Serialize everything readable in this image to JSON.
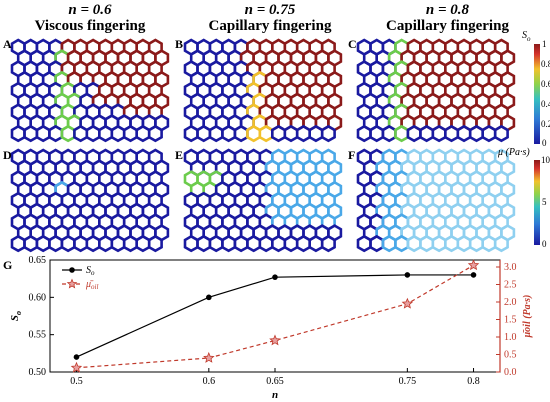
{
  "columns": [
    {
      "n_label": "n = 0.6",
      "title": "Viscous fingering"
    },
    {
      "n_label": "n = 0.75",
      "title": "Capillary fingering"
    },
    {
      "n_label": "n = 0.8",
      "title": "Capillary fingering"
    }
  ],
  "panel_letters": [
    "A",
    "B",
    "C",
    "D",
    "E",
    "F",
    "G"
  ],
  "colorbar_so": {
    "label": "S",
    "sub": "o",
    "ticks": [
      "1",
      "0.8",
      "0.6",
      "0.4",
      "0.2",
      "0"
    ]
  },
  "colorbar_mu": {
    "label": "μ (Pa·s)",
    "ticks": [
      "10",
      "5",
      "0"
    ]
  },
  "colors": {
    "low": "#1a1aa0",
    "high": "#8b1a1a",
    "accent_red": "#c0392b",
    "line_black": "#000000"
  },
  "chart_data": {
    "type": "line",
    "x": [
      0.5,
      0.6,
      0.65,
      0.75,
      0.8
    ],
    "xticks": [
      "0.5",
      "0.6",
      "0.65",
      "0.75",
      "0.8"
    ],
    "xlabel": "n",
    "series": [
      {
        "name": "So",
        "axis": "left",
        "values": [
          0.52,
          0.6,
          0.627,
          0.63,
          0.63
        ]
      },
      {
        "name": "μ̄oil",
        "axis": "right",
        "values": [
          0.12,
          0.4,
          0.9,
          1.95,
          3.05
        ]
      }
    ],
    "ylabel_left": "So",
    "ylabel_right": "μ̄oil (Pa·s)",
    "ylim_left": [
      0.5,
      0.65
    ],
    "ylim_right": [
      0,
      3.2
    ],
    "yticks_left": [
      "0.50",
      "0.55",
      "0.60",
      "0.65"
    ],
    "yticks_right": [
      "0.0",
      "0.5",
      "1.0",
      "1.5",
      "2.0",
      "2.5",
      "3.0"
    ],
    "legend": [
      {
        "label": "S",
        "sub": "o"
      },
      {
        "label": "μ̄",
        "sub": "oil"
      }
    ]
  }
}
